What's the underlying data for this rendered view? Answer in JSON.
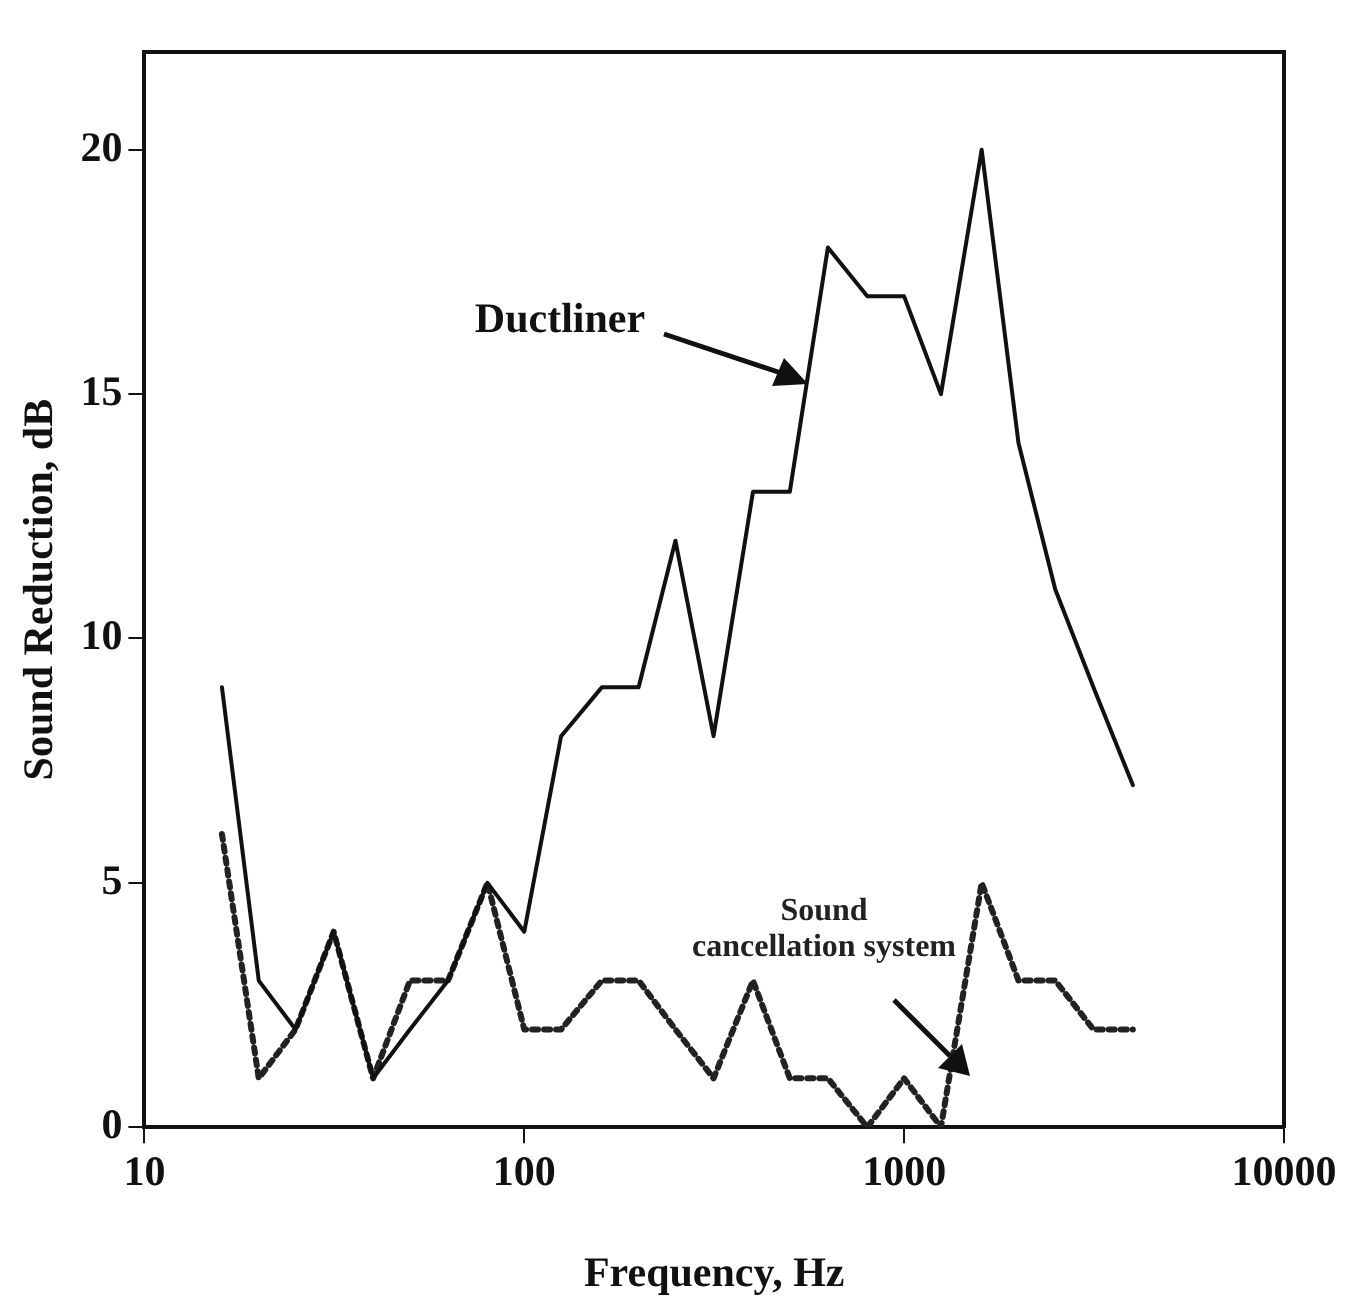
{
  "chart_data": {
    "type": "line",
    "xlabel": "Frequency, Hz",
    "ylabel": "Sound Reduction, dB",
    "log": "x",
    "xlim": [
      10,
      10000
    ],
    "xticks": [
      10,
      100,
      1000,
      10000
    ],
    "ylim": [
      0,
      22
    ],
    "yticks": [
      0,
      5,
      10,
      15,
      20
    ],
    "grid": false,
    "legend": false,
    "marker": "none",
    "x": [
      16,
      20,
      25,
      31.5,
      40,
      50,
      63,
      80,
      100,
      125,
      160,
      200,
      250,
      315,
      400,
      500,
      630,
      800,
      1000,
      1250,
      1600,
      2000,
      2500,
      3150,
      4000
    ],
    "series": [
      {
        "name": "Ductliner",
        "color": "#111111",
        "line_style": "solid",
        "values": [
          9,
          3,
          2,
          4,
          1,
          2,
          3,
          5,
          4,
          8,
          9,
          9,
          12,
          8,
          13,
          13,
          18,
          17,
          17,
          15,
          20,
          14,
          11,
          9,
          7
        ]
      },
      {
        "name": "Sound cancellation system",
        "color": "#222222",
        "line_style": "dotted",
        "values": [
          6,
          1,
          2,
          4,
          1,
          3,
          3,
          5,
          2,
          2,
          3,
          3,
          2,
          1,
          3,
          1,
          1,
          0,
          1,
          0,
          5,
          3,
          3,
          2,
          2
        ]
      }
    ]
  }
}
